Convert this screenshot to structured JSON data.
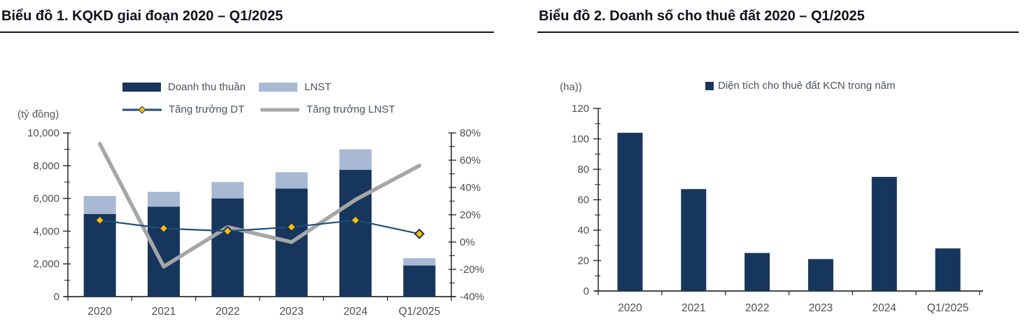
{
  "page": {
    "background": "#ffffff"
  },
  "colors": {
    "navy": "#17365D",
    "light_blue": "#A9B9D4",
    "line_navy": "#1F4E79",
    "gray_line": "#A6A6A6",
    "gold": "#FFC000",
    "axis_line": "#2e2e2e",
    "tick_text": "#4d4d4d",
    "legend_text": "#4a5260",
    "title_text": "#10101e"
  },
  "chart1": {
    "title": "Biểu đồ 1. KQKD giai đoạn 2020 – Q1/2025",
    "unit_label": "(tỷ đồng)",
    "legend": [
      {
        "label": "Doanh thu thuần",
        "swatch": "bar",
        "color": "#17365D"
      },
      {
        "label": "LNST",
        "swatch": "bar",
        "color": "#A9B9D4"
      },
      {
        "label": "Tăng trưởng DT",
        "swatch": "line-diamond",
        "color": "#1F4E79",
        "marker_color": "#FFC000"
      },
      {
        "label": "Tăng trưởng LNST",
        "swatch": "line",
        "color": "#A6A6A6"
      }
    ],
    "chart_data": {
      "type": "combo-stacked-bar-line",
      "categories": [
        "2020",
        "2021",
        "2022",
        "2023",
        "2024",
        "Q1/2025"
      ],
      "series": [
        {
          "name": "Doanh thu thuần",
          "type": "bar",
          "stack": "kqkd",
          "axis": "left",
          "color": "#17365D",
          "values": [
            5050,
            5500,
            6000,
            6600,
            7750,
            1900
          ]
        },
        {
          "name": "LNST",
          "type": "bar",
          "stack": "kqkd",
          "axis": "left",
          "color": "#A9B9D4",
          "values": [
            1100,
            900,
            1000,
            1000,
            1250,
            450
          ]
        },
        {
          "name": "Tăng trưởng DT",
          "type": "line",
          "axis": "right",
          "color": "#1F4E79",
          "marker": "diamond",
          "marker_color": "#FFC000",
          "values_pct": [
            16,
            10,
            8,
            11,
            16,
            6
          ]
        },
        {
          "name": "Tăng trưởng LNST",
          "type": "line",
          "axis": "right",
          "color": "#A6A6A6",
          "marker": "none",
          "values_pct": [
            72,
            -18,
            11,
            0,
            31,
            56
          ]
        }
      ],
      "left_axis": {
        "title": "(tỷ đồng)",
        "min": 0,
        "max": 10000,
        "tick_step": 2000,
        "minor_tick_step": 1000,
        "tick_labels": [
          "0",
          "2,000",
          "4,000",
          "6,000",
          "8,000",
          "10,000"
        ]
      },
      "right_axis": {
        "min": -40,
        "max": 80,
        "tick_step": 20,
        "minor_tick_step": 10,
        "tick_labels": [
          "-40%",
          "-20%",
          "0%",
          "20%",
          "40%",
          "60%",
          "80%"
        ]
      },
      "grid": false,
      "legend_position": "top"
    }
  },
  "chart2": {
    "title": "Biểu đồ 2. Doanh số cho thuê đất 2020 – Q1/2025",
    "unit_label": "(ha))",
    "legend": [
      {
        "label": "Diện tích cho thuê đất KCN trong năm",
        "swatch": "square",
        "color": "#17365D"
      }
    ],
    "chart_data": {
      "type": "bar",
      "categories": [
        "2020",
        "2021",
        "2022",
        "2023",
        "2024",
        "Q1/2025"
      ],
      "series": [
        {
          "name": "Diện tích cho thuê đất KCN trong năm",
          "color": "#17365D",
          "values": [
            104,
            67,
            25,
            21,
            75,
            28
          ]
        }
      ],
      "y_axis": {
        "title": "(ha))",
        "min": 0,
        "max": 120,
        "tick_step": 20,
        "minor_tick_step": 10,
        "tick_labels": [
          "0",
          "20",
          "40",
          "60",
          "80",
          "100",
          "120"
        ]
      },
      "grid": false,
      "legend_position": "top"
    }
  }
}
